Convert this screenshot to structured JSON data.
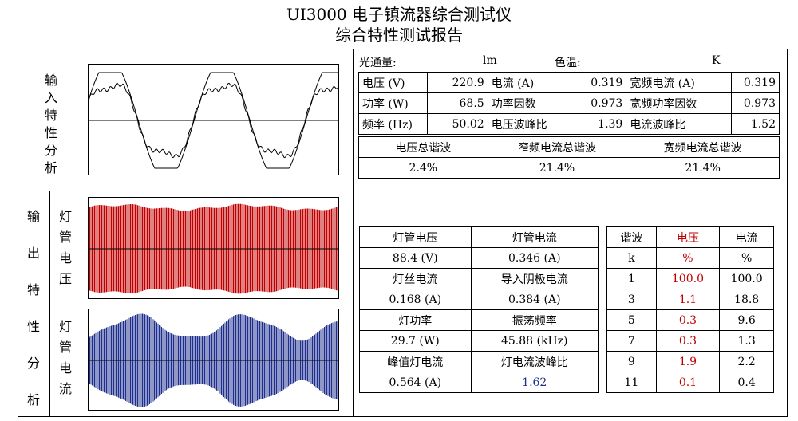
{
  "title": "UI3000 电子镇流器综合测试仪",
  "subtitle": "综合特性测试报告",
  "input_label": [
    "输",
    "入",
    "特",
    "性",
    "分",
    "析"
  ],
  "output_label": [
    "输",
    "出",
    "特",
    "性",
    "分",
    "析"
  ],
  "lamp_voltage_label": [
    "灯",
    "管",
    "电",
    "压"
  ],
  "lamp_current_label": [
    "灯",
    "管",
    "电",
    "流"
  ],
  "luminous": {
    "label": "光通量:",
    "unit": "lm",
    "cct_label": "色温:",
    "cct_unit": "K"
  },
  "input_params": [
    [
      "电压 (V)",
      "220.9",
      "电流 (A)",
      "0.319",
      "宽频电流 (A)",
      "0.319"
    ],
    [
      "功率 (W)",
      "68.5",
      "功率因数",
      "0.973",
      "宽频功率因数",
      "0.973"
    ],
    [
      "频率 (Hz)",
      "50.02",
      "电压波峰比",
      "1.39",
      "电流波峰比",
      "1.52"
    ]
  ],
  "thd_headers": [
    "电压总谐波",
    "窄频电流总谐波",
    "宽频电流总谐波"
  ],
  "thd_values": [
    "2.4%",
    "21.4%",
    "21.4%"
  ],
  "output_params": [
    [
      "灯管电压",
      "灯管电流"
    ],
    [
      "88.4 (V)",
      "0.346 (A)"
    ],
    [
      "灯丝电流",
      "导入阴极电流"
    ],
    [
      "0.168 (A)",
      "0.384 (A)"
    ],
    [
      "灯功率",
      "振荡频率"
    ],
    [
      "29.7 (W)",
      "45.88 (kHz)"
    ],
    [
      "峰值灯电流",
      "灯电流波峰比"
    ],
    [
      "0.564 (A)",
      "1.62"
    ]
  ],
  "harmonics": {
    "headers": [
      "谐波",
      "电压",
      "电流"
    ],
    "units": [
      "k",
      "%",
      "%"
    ],
    "rows": [
      [
        "1",
        "100.0",
        "100.0"
      ],
      [
        "3",
        "1.1",
        "18.8"
      ],
      [
        "5",
        "0.3",
        "9.6"
      ],
      [
        "7",
        "0.3",
        "1.3"
      ],
      [
        "9",
        "1.9",
        "2.2"
      ],
      [
        "11",
        "0.1",
        "0.4"
      ]
    ]
  },
  "colors": {
    "voltage_wave": "#c00000",
    "current_wave": "#1f2f8f"
  }
}
